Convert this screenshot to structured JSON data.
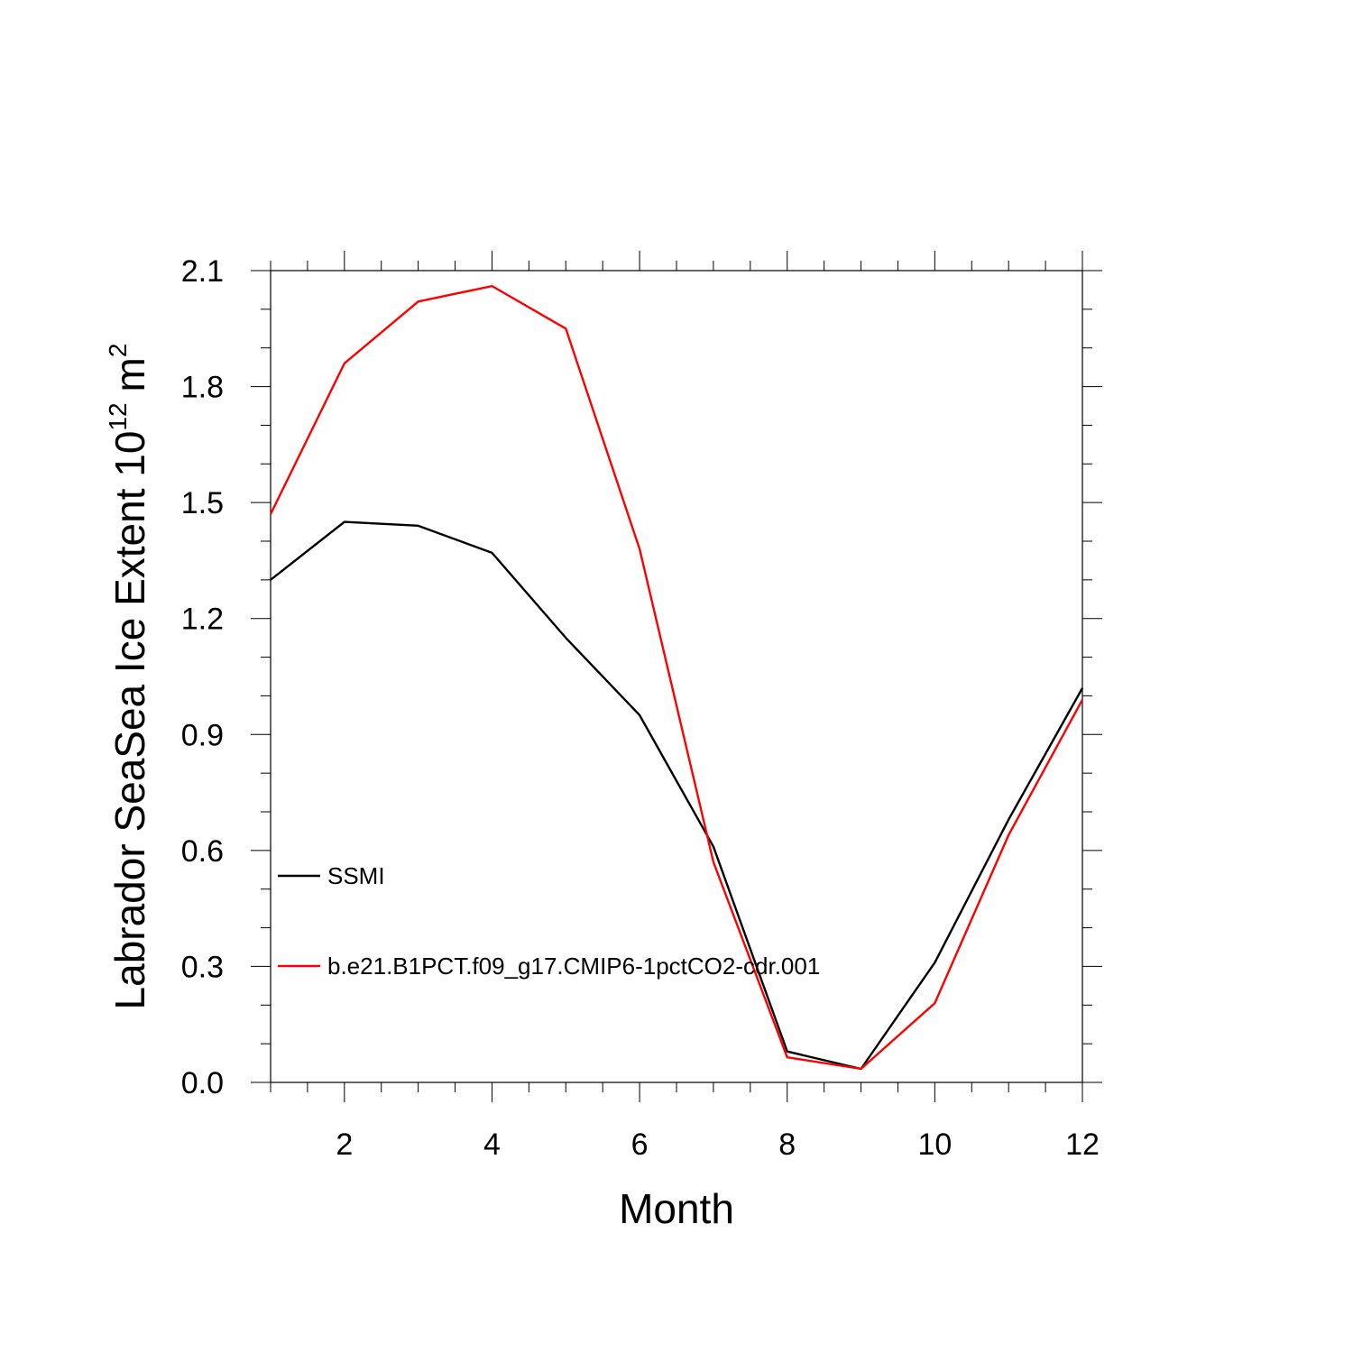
{
  "chart_data": {
    "type": "line",
    "title": "",
    "xlabel": "Month",
    "ylabel": {
      "main": "Labrador SeaSea Ice Extent 10",
      "exponent": "12",
      "unit": "m",
      "unit_exponent": "2"
    },
    "xlim": [
      1,
      12
    ],
    "ylim": [
      0.0,
      2.1
    ],
    "x_ticks": [
      2,
      4,
      6,
      8,
      10,
      12
    ],
    "x_tick_labels": [
      "2",
      "4",
      "6",
      "8",
      "10",
      "12"
    ],
    "y_ticks": [
      0.0,
      0.3,
      0.6,
      0.9,
      1.2,
      1.5,
      1.8,
      2.1
    ],
    "y_tick_labels": [
      "0.0",
      "0.3",
      "0.6",
      "0.9",
      "1.2",
      "1.5",
      "1.8",
      "2.1"
    ],
    "grid": false,
    "legend_position": "lower-left inside plot",
    "x": [
      1,
      2,
      3,
      4,
      5,
      6,
      7,
      8,
      9,
      10,
      11,
      12
    ],
    "series": [
      {
        "name": "SSMI",
        "color": "#000000",
        "values": [
          1.3,
          1.45,
          1.44,
          1.37,
          1.15,
          0.95,
          0.61,
          0.08,
          0.035,
          0.31,
          0.68,
          1.02
        ]
      },
      {
        "name": "b.e21.B1PCT.f09_g17.CMIP6-1pctCO2-cdr.001",
        "color": "#ff0000",
        "values": [
          1.47,
          1.86,
          2.02,
          2.06,
          1.95,
          1.38,
          0.57,
          0.065,
          0.035,
          0.205,
          0.64,
          0.99
        ]
      }
    ]
  }
}
